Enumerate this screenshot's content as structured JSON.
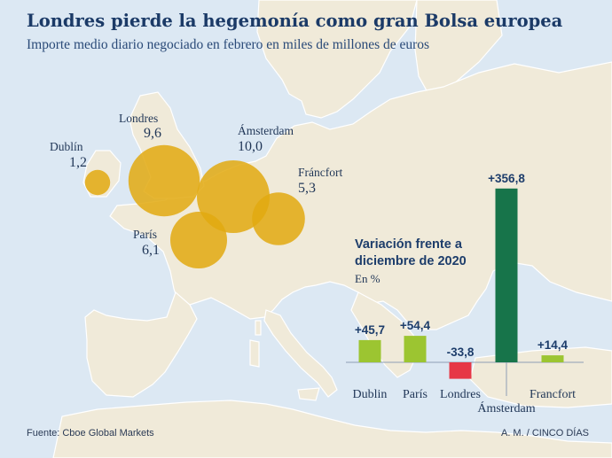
{
  "title": "Londres pierde la hegemonía como gran Bolsa europea",
  "subtitle": "Importe medio diario negociado en febrero en miles de millones de euros",
  "colors": {
    "sea": "#dce8f3",
    "land": "#f0ead9",
    "border": "#ffffff",
    "bubble": "#e2a90f",
    "bar_positive": "#9cc531",
    "bar_negative": "#e63746",
    "bar_highlight": "#17744a",
    "text": "#1d3d6b"
  },
  "chart_data": [
    {
      "type": "bubble",
      "title": "",
      "unit": "miles de millones de euros",
      "items": [
        {
          "city": "Dublín",
          "value_label": "1,2",
          "value": 1.2
        },
        {
          "city": "Londres",
          "value_label": "9,6",
          "value": 9.6
        },
        {
          "city": "Ámsterdam",
          "value_label": "10,0",
          "value": 10.0
        },
        {
          "city": "Fráncfort",
          "value_label": "5,3",
          "value": 5.3
        },
        {
          "city": "París",
          "value_label": "6,1",
          "value": 6.1
        }
      ]
    },
    {
      "type": "bar",
      "title": "Variación frente a diciembre de 2020",
      "unit": "En %",
      "categories": [
        "Dublin",
        "París",
        "Londres",
        "Ámsterdam",
        "Francfort"
      ],
      "values": [
        45.7,
        54.4,
        -33.8,
        356.8,
        14.4
      ],
      "value_labels": [
        "+45,7",
        "+54,4",
        "-33,8",
        "+356,8",
        "+14,4"
      ],
      "highlight": "Ámsterdam"
    }
  ],
  "footer": {
    "source": "Fuente: Cboe Global Markets",
    "credit": "A. M. / CINCO DÍAS"
  }
}
